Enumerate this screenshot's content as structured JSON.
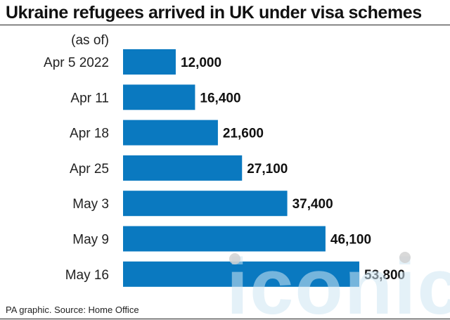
{
  "title": "Ukraine refugees arrived in UK under visa schemes",
  "as_of_label": "(as of)",
  "source": "PA graphic. Source: Home Office",
  "watermark_text": "iconic",
  "colors": {
    "bar": "#0a79c0",
    "text": "#111111",
    "watermark": "#cfe6f4"
  },
  "chart_data": {
    "type": "bar",
    "orientation": "horizontal",
    "categories": [
      "Apr 5 2022",
      "Apr 11",
      "Apr 18",
      "Apr 25",
      "May 3",
      "May 9",
      "May 16"
    ],
    "values": [
      12000,
      16400,
      21600,
      27100,
      37400,
      46100,
      53800
    ],
    "value_labels": [
      "12,000",
      "16,400",
      "21,600",
      "27,100",
      "37,400",
      "46,100",
      "53,800"
    ],
    "title": "Ukraine refugees arrived in UK under visa schemes",
    "xlim": [
      0,
      56000
    ],
    "grid": false,
    "legend": "none"
  }
}
